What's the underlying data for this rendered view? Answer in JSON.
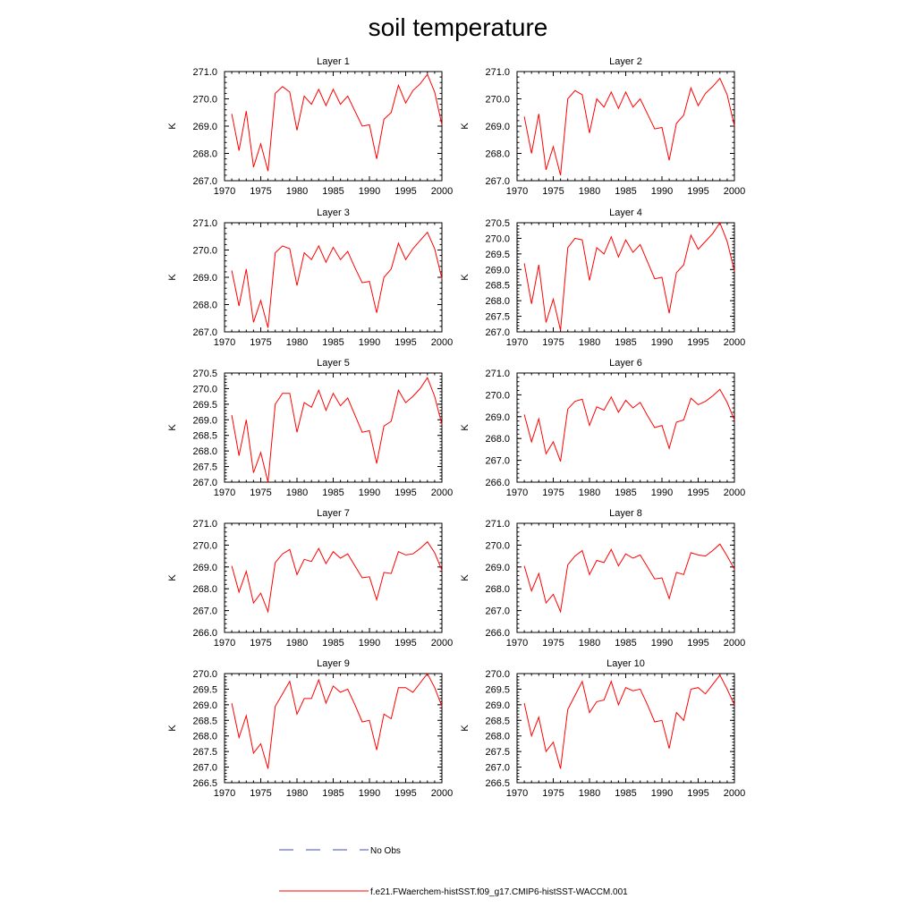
{
  "title": "soil temperature",
  "x_tick_labels": [
    "1970",
    "1975",
    "1980",
    "1985",
    "1990",
    "1995",
    "2000"
  ],
  "colors": {
    "model": "#ff0000",
    "obs": "#3b4cc0",
    "axis": "#000000"
  },
  "legend": [
    {
      "label": "No Obs",
      "style": "dashed",
      "color": "#3b4cc0"
    },
    {
      "label": "f.e21.FWaerchem-histSST.f09_g17.CMIP6-histSST-WACCM.001",
      "style": "solid",
      "color": "#ff0000"
    }
  ],
  "chart_data": [
    {
      "type": "line",
      "title": "Layer 1",
      "ylabel": "K",
      "xlim": [
        1970,
        2000
      ],
      "ylim": [
        267.0,
        271.0
      ],
      "y_ticks": [
        "271.0",
        "270.0",
        "269.0",
        "268.0",
        "267.0"
      ],
      "y_tick_values": [
        271,
        270,
        269,
        268,
        267
      ],
      "x": [
        1971,
        1972,
        1973,
        1974,
        1975,
        1976,
        1977,
        1978,
        1979,
        1980,
        1981,
        1982,
        1983,
        1984,
        1985,
        1986,
        1987,
        1988,
        1989,
        1990,
        1991,
        1992,
        1993,
        1994,
        1995,
        1996,
        1997,
        1998,
        1999,
        2000
      ],
      "series": [
        {
          "name": "f.e21.FWaerchem-histSST.f09_g17.CMIP6-histSST-WACCM.001",
          "values": [
            269.45,
            268.1,
            269.55,
            267.5,
            268.35,
            267.35,
            270.2,
            270.45,
            270.25,
            268.85,
            270.1,
            269.8,
            270.35,
            269.75,
            270.35,
            269.8,
            270.1,
            269.55,
            269.0,
            269.05,
            267.8,
            269.25,
            269.5,
            270.5,
            269.85,
            270.3,
            270.55,
            270.9,
            270.25,
            269.05
          ]
        }
      ]
    },
    {
      "type": "line",
      "title": "Layer 2",
      "ylabel": "K",
      "xlim": [
        1970,
        2000
      ],
      "ylim": [
        267.0,
        271.0
      ],
      "y_ticks": [
        "271.0",
        "270.0",
        "269.0",
        "268.0",
        "267.0"
      ],
      "y_tick_values": [
        271,
        270,
        269,
        268,
        267
      ],
      "x": [
        1971,
        1972,
        1973,
        1974,
        1975,
        1976,
        1977,
        1978,
        1979,
        1980,
        1981,
        1982,
        1983,
        1984,
        1985,
        1986,
        1987,
        1988,
        1989,
        1990,
        1991,
        1992,
        1993,
        1994,
        1995,
        1996,
        1997,
        1998,
        1999,
        2000
      ],
      "series": [
        {
          "name": "f.e21.FWaerchem-histSST.f09_g17.CMIP6-histSST-WACCM.001",
          "values": [
            269.35,
            268.0,
            269.45,
            267.4,
            268.25,
            267.2,
            270.0,
            270.3,
            270.15,
            268.75,
            270.0,
            269.7,
            270.25,
            269.65,
            270.25,
            269.7,
            270.0,
            269.45,
            268.9,
            268.95,
            267.75,
            269.1,
            269.4,
            270.4,
            269.75,
            270.2,
            270.45,
            270.75,
            270.15,
            269.0
          ]
        }
      ]
    },
    {
      "type": "line",
      "title": "Layer 3",
      "ylabel": "K",
      "xlim": [
        1970,
        2000
      ],
      "ylim": [
        267.0,
        271.0
      ],
      "y_ticks": [
        "271.0",
        "270.0",
        "269.0",
        "268.0",
        "267.0"
      ],
      "y_tick_values": [
        271,
        270,
        269,
        268,
        267
      ],
      "x": [
        1971,
        1972,
        1973,
        1974,
        1975,
        1976,
        1977,
        1978,
        1979,
        1980,
        1981,
        1982,
        1983,
        1984,
        1985,
        1986,
        1987,
        1988,
        1989,
        1990,
        1991,
        1992,
        1993,
        1994,
        1995,
        1996,
        1997,
        1998,
        1999,
        2000
      ],
      "series": [
        {
          "name": "f.e21.FWaerchem-histSST.f09_g17.CMIP6-histSST-WACCM.001",
          "values": [
            269.25,
            267.95,
            269.3,
            267.35,
            268.15,
            267.15,
            269.9,
            270.15,
            270.05,
            268.7,
            269.9,
            269.65,
            270.15,
            269.55,
            270.1,
            269.65,
            269.95,
            269.35,
            268.8,
            268.85,
            267.7,
            269.0,
            269.3,
            270.25,
            269.65,
            270.05,
            270.35,
            270.65,
            270.05,
            268.95
          ]
        }
      ]
    },
    {
      "type": "line",
      "title": "Layer 4",
      "ylabel": "K",
      "xlim": [
        1970,
        2000
      ],
      "ylim": [
        267.0,
        270.5
      ],
      "y_ticks": [
        "270.5",
        "270.0",
        "269.5",
        "269.0",
        "268.5",
        "268.0",
        "267.5",
        "267.0"
      ],
      "y_tick_values": [
        270.5,
        270,
        269.5,
        269,
        268.5,
        268,
        267.5,
        267
      ],
      "x": [
        1971,
        1972,
        1973,
        1974,
        1975,
        1976,
        1977,
        1978,
        1979,
        1980,
        1981,
        1982,
        1983,
        1984,
        1985,
        1986,
        1987,
        1988,
        1989,
        1990,
        1991,
        1992,
        1993,
        1994,
        1995,
        1996,
        1997,
        1998,
        1999,
        2000
      ],
      "series": [
        {
          "name": "f.e21.FWaerchem-histSST.f09_g17.CMIP6-histSST-WACCM.001",
          "values": [
            269.2,
            267.9,
            269.15,
            267.3,
            268.05,
            267.05,
            269.7,
            270.0,
            269.95,
            268.65,
            269.7,
            269.5,
            270.05,
            269.4,
            269.95,
            269.55,
            269.8,
            269.25,
            268.7,
            268.75,
            267.6,
            268.9,
            269.15,
            270.1,
            269.65,
            269.9,
            270.15,
            270.5,
            269.9,
            268.95
          ]
        }
      ]
    },
    {
      "type": "line",
      "title": "Layer 5",
      "ylabel": "K",
      "xlim": [
        1970,
        2000
      ],
      "ylim": [
        267.0,
        270.5
      ],
      "y_ticks": [
        "270.5",
        "270.0",
        "269.5",
        "269.0",
        "268.5",
        "268.0",
        "267.5",
        "267.0"
      ],
      "y_tick_values": [
        270.5,
        270,
        269.5,
        269,
        268.5,
        268,
        267.5,
        267
      ],
      "x": [
        1971,
        1972,
        1973,
        1974,
        1975,
        1976,
        1977,
        1978,
        1979,
        1980,
        1981,
        1982,
        1983,
        1984,
        1985,
        1986,
        1987,
        1988,
        1989,
        1990,
        1991,
        1992,
        1993,
        1994,
        1995,
        1996,
        1997,
        1998,
        1999,
        2000
      ],
      "series": [
        {
          "name": "f.e21.FWaerchem-histSST.f09_g17.CMIP6-histSST-WACCM.001",
          "values": [
            269.15,
            267.85,
            269.0,
            267.3,
            267.95,
            267.0,
            269.5,
            269.85,
            269.85,
            268.6,
            269.55,
            269.4,
            269.95,
            269.3,
            269.85,
            269.45,
            269.7,
            269.15,
            268.6,
            268.65,
            267.6,
            268.8,
            268.95,
            269.95,
            269.55,
            269.75,
            270.0,
            270.35,
            269.75,
            268.85
          ]
        }
      ]
    },
    {
      "type": "line",
      "title": "Layer 6",
      "ylabel": "K",
      "xlim": [
        1970,
        2000
      ],
      "ylim": [
        266.0,
        271.0
      ],
      "y_ticks": [
        "271.0",
        "270.0",
        "269.0",
        "268.0",
        "267.0",
        "266.0"
      ],
      "y_tick_values": [
        271,
        270,
        269,
        268,
        267,
        266
      ],
      "x": [
        1971,
        1972,
        1973,
        1974,
        1975,
        1976,
        1977,
        1978,
        1979,
        1980,
        1981,
        1982,
        1983,
        1984,
        1985,
        1986,
        1987,
        1988,
        1989,
        1990,
        1991,
        1992,
        1993,
        1994,
        1995,
        1996,
        1997,
        1998,
        1999,
        2000
      ],
      "series": [
        {
          "name": "f.e21.FWaerchem-histSST.f09_g17.CMIP6-histSST-WACCM.001",
          "values": [
            269.1,
            267.85,
            268.9,
            267.3,
            267.85,
            266.95,
            269.35,
            269.7,
            269.8,
            268.6,
            269.45,
            269.3,
            269.9,
            269.2,
            269.75,
            269.4,
            269.65,
            269.05,
            268.5,
            268.6,
            267.55,
            268.75,
            268.85,
            269.85,
            269.55,
            269.7,
            269.95,
            270.25,
            269.65,
            268.85
          ]
        }
      ]
    },
    {
      "type": "line",
      "title": "Layer 7",
      "ylabel": "K",
      "xlim": [
        1970,
        2000
      ],
      "ylim": [
        266.0,
        271.0
      ],
      "y_ticks": [
        "271.0",
        "270.0",
        "269.0",
        "268.0",
        "267.0",
        "266.0"
      ],
      "y_tick_values": [
        271,
        270,
        269,
        268,
        267,
        266
      ],
      "x": [
        1971,
        1972,
        1973,
        1974,
        1975,
        1976,
        1977,
        1978,
        1979,
        1980,
        1981,
        1982,
        1983,
        1984,
        1985,
        1986,
        1987,
        1988,
        1989,
        1990,
        1991,
        1992,
        1993,
        1994,
        1995,
        1996,
        1997,
        1998,
        1999,
        2000
      ],
      "series": [
        {
          "name": "f.e21.FWaerchem-histSST.f09_g17.CMIP6-histSST-WACCM.001",
          "values": [
            269.05,
            267.85,
            268.8,
            267.35,
            267.8,
            266.95,
            269.2,
            269.6,
            269.8,
            268.65,
            269.35,
            269.25,
            269.85,
            269.15,
            269.7,
            269.4,
            269.6,
            269.05,
            268.5,
            268.55,
            267.5,
            268.75,
            268.7,
            269.7,
            269.55,
            269.6,
            269.85,
            270.15,
            269.65,
            268.85
          ]
        }
      ]
    },
    {
      "type": "line",
      "title": "Layer 8",
      "ylabel": "K",
      "xlim": [
        1970,
        2000
      ],
      "ylim": [
        266.0,
        271.0
      ],
      "y_ticks": [
        "271.0",
        "270.0",
        "269.0",
        "268.0",
        "267.0",
        "266.0"
      ],
      "y_tick_values": [
        271,
        270,
        269,
        268,
        267,
        266
      ],
      "x": [
        1971,
        1972,
        1973,
        1974,
        1975,
        1976,
        1977,
        1978,
        1979,
        1980,
        1981,
        1982,
        1983,
        1984,
        1985,
        1986,
        1987,
        1988,
        1989,
        1990,
        1991,
        1992,
        1993,
        1994,
        1995,
        1996,
        1997,
        1998,
        1999,
        2000
      ],
      "series": [
        {
          "name": "f.e21.FWaerchem-histSST.f09_g17.CMIP6-histSST-WACCM.001",
          "values": [
            269.05,
            267.9,
            268.7,
            267.35,
            267.75,
            266.95,
            269.1,
            269.5,
            269.75,
            268.65,
            269.3,
            269.2,
            269.8,
            269.05,
            269.6,
            269.4,
            269.55,
            269.0,
            268.45,
            268.5,
            267.55,
            268.75,
            268.65,
            269.65,
            269.55,
            269.5,
            269.75,
            270.05,
            269.5,
            268.9
          ]
        }
      ]
    },
    {
      "type": "line",
      "title": "Layer 9",
      "ylabel": "K",
      "xlim": [
        1970,
        2000
      ],
      "ylim": [
        266.5,
        270.0
      ],
      "y_ticks": [
        "270.0",
        "269.5",
        "269.0",
        "268.5",
        "268.0",
        "267.5",
        "267.0",
        "266.5"
      ],
      "y_tick_values": [
        270,
        269.5,
        269,
        268.5,
        268,
        267.5,
        267,
        266.5
      ],
      "x": [
        1971,
        1972,
        1973,
        1974,
        1975,
        1976,
        1977,
        1978,
        1979,
        1980,
        1981,
        1982,
        1983,
        1984,
        1985,
        1986,
        1987,
        1988,
        1989,
        1990,
        1991,
        1992,
        1993,
        1994,
        1995,
        1996,
        1997,
        1998,
        1999,
        2000
      ],
      "series": [
        {
          "name": "f.e21.FWaerchem-histSST.f09_g17.CMIP6-histSST-WACCM.001",
          "values": [
            269.05,
            267.95,
            268.65,
            267.45,
            267.75,
            266.95,
            268.95,
            269.35,
            269.75,
            268.7,
            269.2,
            269.2,
            269.8,
            269.05,
            269.6,
            269.4,
            269.5,
            269.0,
            268.45,
            268.5,
            267.55,
            268.7,
            268.55,
            269.55,
            269.55,
            269.4,
            269.7,
            270.0,
            269.55,
            268.95
          ]
        }
      ]
    },
    {
      "type": "line",
      "title": "Layer 10",
      "ylabel": "K",
      "xlim": [
        1970,
        2000
      ],
      "ylim": [
        266.5,
        270.0
      ],
      "y_ticks": [
        "270.0",
        "269.5",
        "269.0",
        "268.5",
        "268.0",
        "267.5",
        "267.0",
        "266.5"
      ],
      "y_tick_values": [
        270,
        269.5,
        269,
        268.5,
        268,
        267.5,
        267,
        266.5
      ],
      "x": [
        1971,
        1972,
        1973,
        1974,
        1975,
        1976,
        1977,
        1978,
        1979,
        1980,
        1981,
        1982,
        1983,
        1984,
        1985,
        1986,
        1987,
        1988,
        1989,
        1990,
        1991,
        1992,
        1993,
        1994,
        1995,
        1996,
        1997,
        1998,
        1999,
        2000
      ],
      "series": [
        {
          "name": "f.e21.FWaerchem-histSST.f09_g17.CMIP6-histSST-WACCM.001",
          "values": [
            269.05,
            268.0,
            268.6,
            267.5,
            267.8,
            266.95,
            268.85,
            269.3,
            269.75,
            268.75,
            269.1,
            269.15,
            269.75,
            269.0,
            269.55,
            269.45,
            269.5,
            269.0,
            268.45,
            268.5,
            267.6,
            268.75,
            268.5,
            269.5,
            269.55,
            269.35,
            269.65,
            269.95,
            269.5,
            269.0
          ]
        }
      ]
    }
  ]
}
